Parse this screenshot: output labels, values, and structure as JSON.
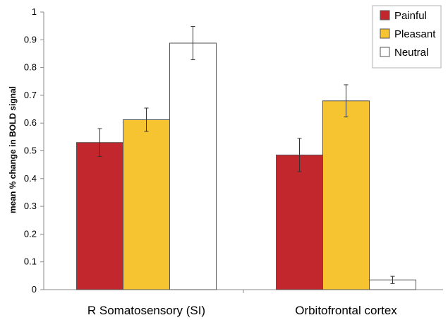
{
  "chart_data": {
    "type": "bar",
    "title": "",
    "xlabel": "",
    "ylabel": "mean % change in BOLD signal",
    "ylim": [
      0,
      1
    ],
    "yticks": [
      "0",
      "0.1",
      "0.2",
      "0.3",
      "0.4",
      "0.5",
      "0.6",
      "0.7",
      "0.8",
      "0.9",
      "1"
    ],
    "grid": false,
    "legend_position": "top-right",
    "categories": [
      "R Somatosensory (SI)",
      "Orbitofrontal cortex"
    ],
    "series": [
      {
        "name": "Painful",
        "color": "#c1272d",
        "values": [
          0.53,
          0.485
        ],
        "error": [
          0.05,
          0.06
        ]
      },
      {
        "name": "Pleasant",
        "color": "#f6c331",
        "values": [
          0.612,
          0.68
        ],
        "error": [
          0.042,
          0.058
        ]
      },
      {
        "name": "Neutral",
        "color": "#ffffff",
        "values": [
          0.888,
          0.035
        ],
        "error": [
          0.06,
          0.013
        ]
      }
    ]
  }
}
